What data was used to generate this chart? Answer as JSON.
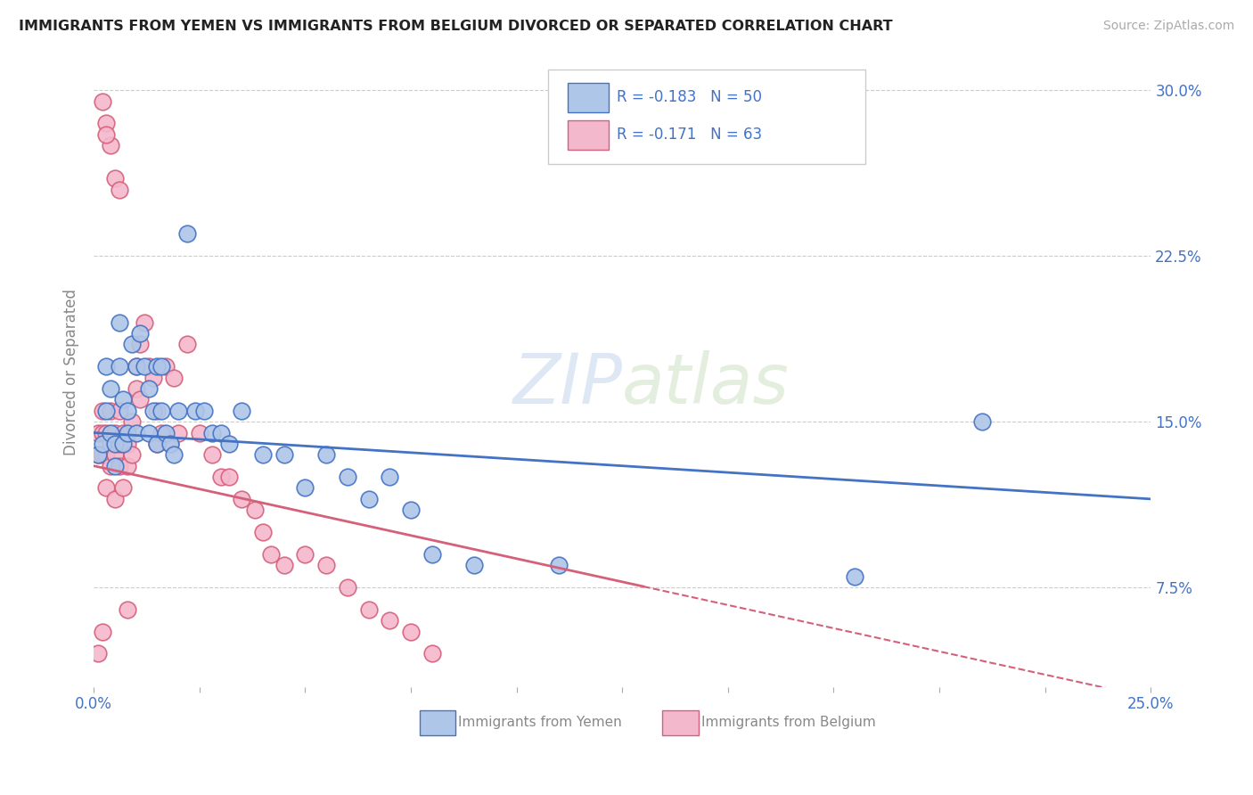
{
  "title": "IMMIGRANTS FROM YEMEN VS IMMIGRANTS FROM BELGIUM DIVORCED OR SEPARATED CORRELATION CHART",
  "source": "Source: ZipAtlas.com",
  "ylabel": "Divorced or Separated",
  "ytick_labels": [
    "30.0%",
    "22.5%",
    "15.0%",
    "7.5%"
  ],
  "ytick_values": [
    0.3,
    0.225,
    0.15,
    0.075
  ],
  "xmin": 0.0,
  "xmax": 0.25,
  "ymin": 0.03,
  "ymax": 0.315,
  "legend_r_yemen": "-0.183",
  "legend_n_yemen": "50",
  "legend_r_belgium": "-0.171",
  "legend_n_belgium": "63",
  "color_yemen_fill": "#aec6e8",
  "color_belgium_fill": "#f4b8cc",
  "color_line_yemen": "#4472c4",
  "color_line_belgium": "#d4607a",
  "color_tick_labels": "#4472c4",
  "watermark": "ZIPatlas",
  "yemen_x": [
    0.001,
    0.002,
    0.003,
    0.003,
    0.004,
    0.004,
    0.005,
    0.005,
    0.006,
    0.006,
    0.007,
    0.007,
    0.008,
    0.008,
    0.009,
    0.01,
    0.01,
    0.011,
    0.012,
    0.013,
    0.013,
    0.014,
    0.015,
    0.015,
    0.016,
    0.016,
    0.017,
    0.018,
    0.019,
    0.02,
    0.022,
    0.024,
    0.026,
    0.028,
    0.03,
    0.032,
    0.035,
    0.04,
    0.045,
    0.05,
    0.055,
    0.06,
    0.065,
    0.07,
    0.075,
    0.08,
    0.09,
    0.11,
    0.18,
    0.21
  ],
  "yemen_y": [
    0.135,
    0.14,
    0.155,
    0.175,
    0.145,
    0.165,
    0.14,
    0.13,
    0.195,
    0.175,
    0.16,
    0.14,
    0.145,
    0.155,
    0.185,
    0.175,
    0.145,
    0.19,
    0.175,
    0.165,
    0.145,
    0.155,
    0.14,
    0.175,
    0.155,
    0.175,
    0.145,
    0.14,
    0.135,
    0.155,
    0.235,
    0.155,
    0.155,
    0.145,
    0.145,
    0.14,
    0.155,
    0.135,
    0.135,
    0.12,
    0.135,
    0.125,
    0.115,
    0.125,
    0.11,
    0.09,
    0.085,
    0.085,
    0.08,
    0.15
  ],
  "belgium_x": [
    0.001,
    0.001,
    0.002,
    0.002,
    0.002,
    0.003,
    0.003,
    0.003,
    0.004,
    0.004,
    0.004,
    0.005,
    0.005,
    0.005,
    0.006,
    0.006,
    0.006,
    0.007,
    0.007,
    0.008,
    0.008,
    0.009,
    0.009,
    0.01,
    0.01,
    0.011,
    0.011,
    0.012,
    0.013,
    0.014,
    0.015,
    0.015,
    0.016,
    0.017,
    0.018,
    0.019,
    0.02,
    0.022,
    0.025,
    0.028,
    0.03,
    0.032,
    0.035,
    0.038,
    0.04,
    0.042,
    0.045,
    0.05,
    0.055,
    0.06,
    0.065,
    0.07,
    0.075,
    0.08,
    0.002,
    0.003,
    0.004,
    0.003,
    0.005,
    0.006,
    0.001,
    0.002,
    0.008
  ],
  "belgium_y": [
    0.135,
    0.145,
    0.135,
    0.145,
    0.155,
    0.135,
    0.145,
    0.12,
    0.13,
    0.14,
    0.155,
    0.135,
    0.145,
    0.115,
    0.14,
    0.155,
    0.13,
    0.145,
    0.12,
    0.13,
    0.14,
    0.15,
    0.135,
    0.175,
    0.165,
    0.16,
    0.185,
    0.195,
    0.175,
    0.17,
    0.14,
    0.155,
    0.145,
    0.175,
    0.14,
    0.17,
    0.145,
    0.185,
    0.145,
    0.135,
    0.125,
    0.125,
    0.115,
    0.11,
    0.1,
    0.09,
    0.085,
    0.09,
    0.085,
    0.075,
    0.065,
    0.06,
    0.055,
    0.045,
    0.295,
    0.285,
    0.275,
    0.28,
    0.26,
    0.255,
    0.045,
    0.055,
    0.065
  ]
}
